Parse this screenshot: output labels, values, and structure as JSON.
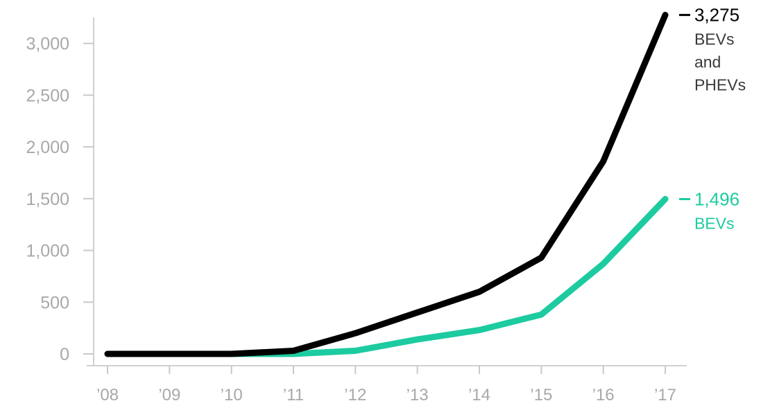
{
  "chart_data": {
    "type": "line",
    "title": "",
    "xlabel": "",
    "ylabel": "",
    "categories": [
      "’08",
      "’09",
      "’10",
      "’11",
      "’12",
      "’13",
      "’14",
      "’15",
      "’16",
      "’17"
    ],
    "y_ticks": [
      "0",
      "500",
      "1,000",
      "1,500",
      "2,000",
      "2,500",
      "3,000"
    ],
    "y_tick_values": [
      0,
      500,
      1000,
      1500,
      2000,
      2500,
      3000
    ],
    "ylim": [
      0,
      3275
    ],
    "grid": false,
    "series": [
      {
        "key": "bevs_phevs",
        "color": "#000000",
        "values": [
          0,
          0,
          0,
          30,
          200,
          400,
          600,
          930,
          1860,
          3275
        ],
        "end_value_label": "3,275",
        "end_label_lines": [
          "BEVs",
          "and",
          "PHEVs"
        ],
        "label_color": "#3a3a3a"
      },
      {
        "key": "bevs",
        "color": "#1dcba0",
        "values": [
          0,
          0,
          0,
          0,
          30,
          140,
          230,
          380,
          870,
          1496
        ],
        "end_value_label": "1,496",
        "end_label_lines": [
          "BEVs"
        ],
        "label_color": "#1dcba0"
      }
    ]
  }
}
